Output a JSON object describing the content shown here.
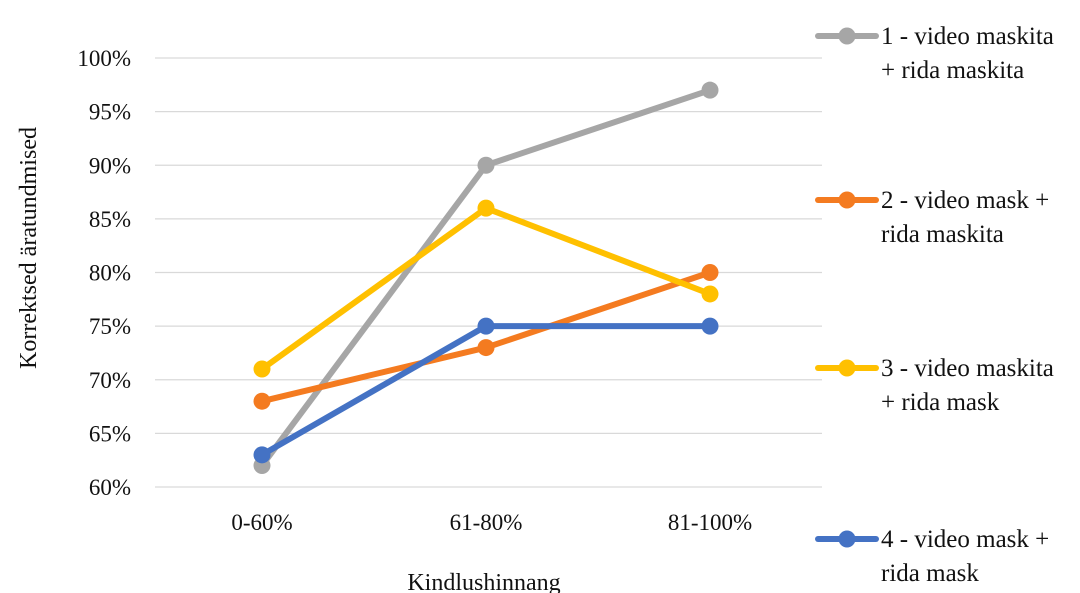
{
  "chart_data": {
    "type": "line",
    "categories": [
      "0-60%",
      "61-80%",
      "81-100%"
    ],
    "xlabel": "Kindlushinnang",
    "ylabel": "Korrektsed äratundmised",
    "ylim": [
      60,
      100
    ],
    "ytick_labels": [
      "60%",
      "65%",
      "70%",
      "75%",
      "80%",
      "85%",
      "90%",
      "95%",
      "100%"
    ],
    "grid": true,
    "legend_position": "right",
    "series": [
      {
        "name": "1 - video maskita + rida maskita",
        "name_lines": [
          "1 - video maskita",
          "+ rida maskita"
        ],
        "color": "#a6a6a6",
        "values": [
          62,
          90,
          97
        ]
      },
      {
        "name": "2 - video mask + rida maskita",
        "name_lines": [
          "2 - video mask +",
          "rida maskita"
        ],
        "color": "#f47b20",
        "values": [
          68,
          73,
          80
        ]
      },
      {
        "name": "3 - video maskita + rida mask",
        "name_lines": [
          "3 - video maskita",
          "+ rida mask"
        ],
        "color": "#ffc000",
        "values": [
          71,
          86,
          78
        ]
      },
      {
        "name": "4 - video mask + rida mask",
        "name_lines": [
          "4 - video mask +",
          "rida mask"
        ],
        "color": "#4472c4",
        "values": [
          63,
          75,
          75
        ]
      }
    ]
  }
}
